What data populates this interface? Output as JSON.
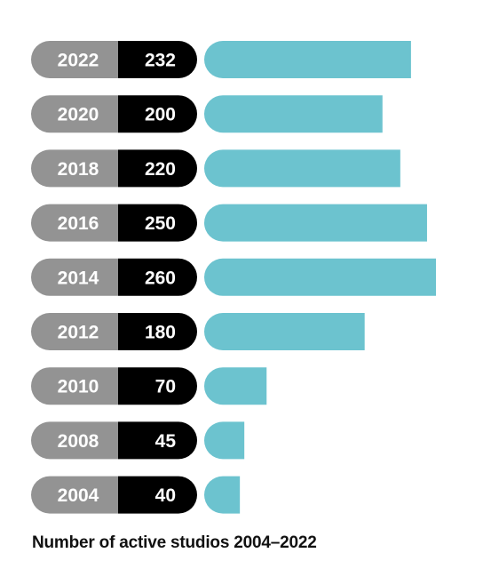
{
  "chart_data": {
    "type": "bar",
    "orientation": "horizontal",
    "categories": [
      "2022",
      "2020",
      "2018",
      "2016",
      "2014",
      "2012",
      "2010",
      "2008",
      "2004"
    ],
    "values": [
      232,
      200,
      220,
      250,
      260,
      180,
      70,
      45,
      40
    ],
    "value_labels": [
      "232",
      "200",
      "220",
      "250",
      "260",
      "180",
      "70",
      "45",
      "40"
    ],
    "title": "Number of active studios 2004–2022",
    "xlabel": "",
    "ylabel": "",
    "xlim": [
      0,
      260
    ],
    "grid": false,
    "legend": "none",
    "colors": {
      "bar": "#6cc3cf",
      "year_pill": "#939393",
      "value_pill": "#000000",
      "label_text": "#ffffff",
      "caption_text": "#111111"
    }
  }
}
